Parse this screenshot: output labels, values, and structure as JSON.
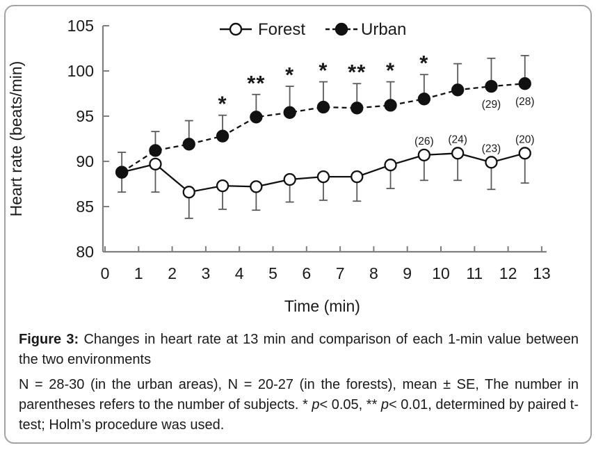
{
  "figure": {
    "border_color": "#a3a3a3"
  },
  "chart_data": {
    "type": "line",
    "title": "",
    "xlabel": "Time (min)",
    "ylabel": "Heart rate (beats/min)",
    "xlim": [
      0,
      13
    ],
    "ylim": [
      80,
      105
    ],
    "x_ticks": [
      0,
      1,
      2,
      3,
      4,
      5,
      6,
      7,
      8,
      9,
      10,
      11,
      12,
      13
    ],
    "y_ticks": [
      80,
      85,
      90,
      95,
      100,
      105
    ],
    "grid": false,
    "legend_position": "top-center",
    "error_bars": "mean ± SE",
    "x": [
      0.5,
      1.5,
      2.5,
      3.5,
      4.5,
      5.5,
      6.5,
      7.5,
      8.5,
      9.5,
      10.5,
      11.5,
      12.5
    ],
    "series": [
      {
        "name": "Forest",
        "marker": "open-circle",
        "line": "solid",
        "values": [
          88.8,
          89.7,
          86.6,
          87.3,
          87.2,
          88.0,
          88.3,
          88.3,
          89.6,
          90.7,
          90.9,
          89.9,
          90.9
        ],
        "se_lower": [
          2.2,
          3.1,
          2.9,
          2.6,
          2.6,
          2.5,
          2.6,
          2.7,
          2.6,
          2.8,
          3.0,
          3.0,
          3.3
        ],
        "n_label_position": "above",
        "n_labels": {
          "9": "(26)",
          "10": "(24)",
          "11": "(23)",
          "12": "(20)"
        }
      },
      {
        "name": "Urban",
        "marker": "filled-circle",
        "line": "dashed",
        "values": [
          88.8,
          91.2,
          91.9,
          92.8,
          94.9,
          95.4,
          96.0,
          95.9,
          96.2,
          96.9,
          97.9,
          98.3,
          98.6
        ],
        "se_upper": [
          2.2,
          2.1,
          2.6,
          2.3,
          2.5,
          2.9,
          2.8,
          2.7,
          2.6,
          2.7,
          2.9,
          3.1,
          3.1
        ],
        "significance": [
          "",
          "",
          "",
          "*",
          "**",
          "*",
          "*",
          "**",
          "*",
          "*",
          "",
          "",
          ""
        ],
        "n_label_position": "below",
        "n_labels": {
          "11": "(29)",
          "12": "(28)"
        }
      }
    ],
    "colors": {
      "line": "#111111",
      "error_bar": "#5a5a5a",
      "axis": "#7f7f7f",
      "text": "#1a1a1a"
    }
  },
  "caption": {
    "figure_label": "Figure 3:",
    "title_rest": " Changes in heart rate at 13 min and comparison of each 1-min value between the two environments",
    "note_1": "N = 28-30 (in the urban areas), N = 20-27 (in the forests), mean ± SE, The number in parentheses refers to the number of subjects. * ",
    "p_italic": "p",
    "note_2": "< 0.05, ** ",
    "note_3": "< 0.01, determined by paired t-test; Holm’s procedure was used."
  }
}
